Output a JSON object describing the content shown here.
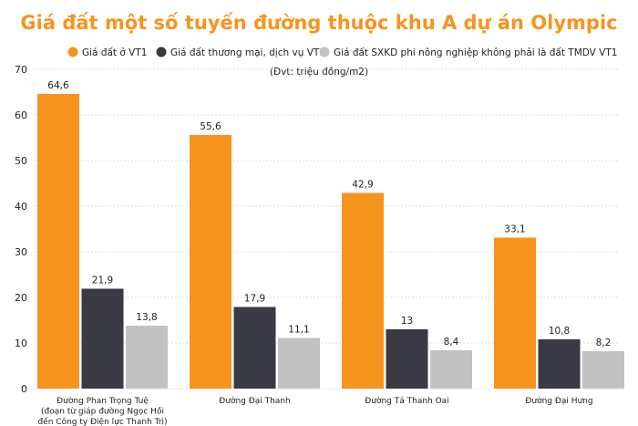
{
  "chart_data": {
    "type": "bar",
    "title": "Giá đất một số tuyến đường thuộc khu A dự án Olympic",
    "unit_note": "(Đvt: triệu đồng/m2)",
    "categories": [
      [
        "Đường Phan Trọng Tuệ",
        "(đoạn từ giáp đường Ngọc Hồi",
        "đến Công ty Điện lực Thanh Trì)"
      ],
      [
        "Đường Đại Thanh"
      ],
      [
        "Đường Tả Thanh Oai"
      ],
      [
        "Đường Đại Hưng"
      ]
    ],
    "series": [
      {
        "name": "Giá đất ở VT1",
        "color": "#f7941d",
        "values": [
          64.6,
          55.6,
          42.9,
          33.1
        ],
        "labels": [
          "64,6",
          "55,6",
          "42,9",
          "33,1"
        ]
      },
      {
        "name": "Giá đất thương mại, dịch vụ VT1",
        "color": "#3a3a44",
        "values": [
          21.9,
          17.9,
          13,
          10.8
        ],
        "labels": [
          "21,9",
          "17,9",
          "13",
          "10,8"
        ]
      },
      {
        "name": "Giá đất SXKD phi nông nghiệp không phải là đất TMDV VT1",
        "color": "#c2c2c2",
        "values": [
          13.8,
          11.1,
          8.4,
          8.2
        ],
        "labels": [
          "13,8",
          "11,1",
          "8,4",
          "8,2"
        ]
      }
    ],
    "ylim": [
      0,
      70
    ],
    "yticks": [
      0,
      10,
      20,
      30,
      40,
      50,
      60,
      70
    ],
    "grid": true,
    "legend_position": "top",
    "title_color": "#f7941d"
  }
}
